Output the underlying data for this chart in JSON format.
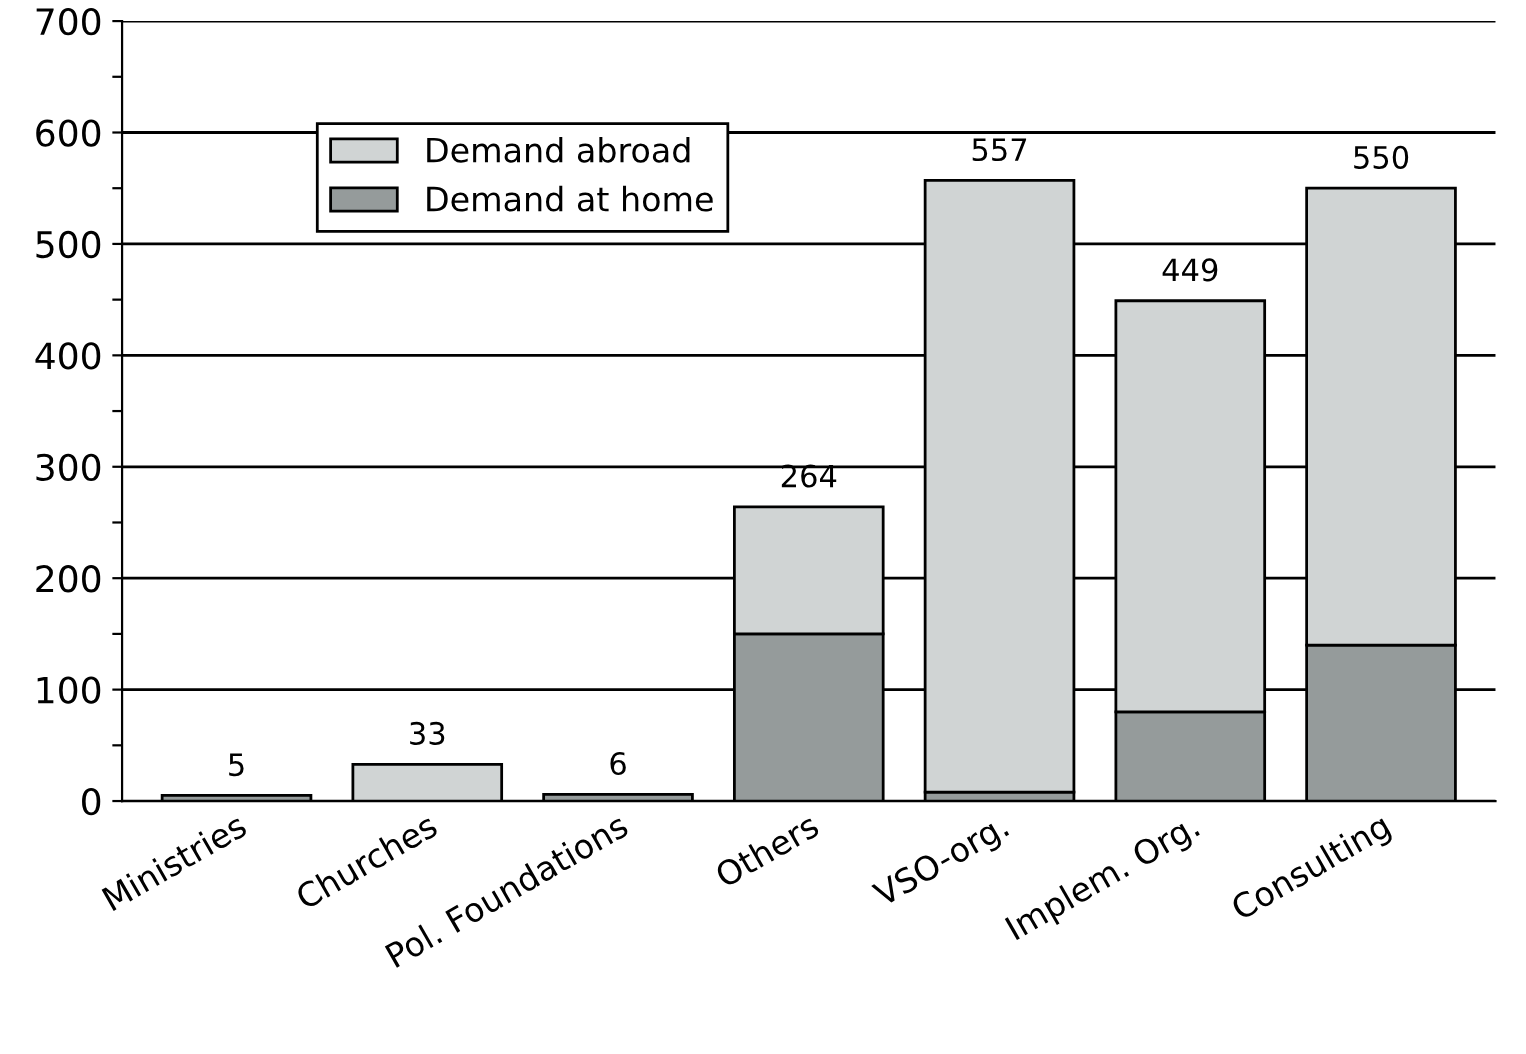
{
  "chart_data": {
    "type": "bar",
    "stacked": true,
    "categories": [
      "Ministries",
      "Churches",
      "Pol. Foundations",
      "Others",
      "VSO-org.",
      "Implem. Org.",
      "Consulting"
    ],
    "series": [
      {
        "name": "Demand at home",
        "color": "#959b9b",
        "values": [
          5,
          null,
          6,
          150,
          8,
          80,
          140
        ]
      },
      {
        "name": "Demand abroad",
        "color": "#d0d4d4",
        "values": [
          null,
          33,
          null,
          114,
          549,
          369,
          410
        ]
      }
    ],
    "totals": [
      "5",
      "33",
      "6",
      "264",
      "557",
      "449",
      "550"
    ],
    "ylim": [
      0,
      700
    ],
    "yticks": [
      0,
      {
        "value": 50,
        "label": null
      },
      100,
      {
        "value": 150,
        "label": null
      },
      200,
      {
        "value": 250,
        "label": null
      },
      300,
      {
        "value": 350,
        "label": null
      },
      400,
      {
        "value": 450,
        "label": null
      },
      500,
      {
        "value": 550,
        "label": null
      },
      600,
      {
        "value": 650,
        "label": null
      },
      700
    ],
    "grid": "y",
    "legend": "top left"
  }
}
